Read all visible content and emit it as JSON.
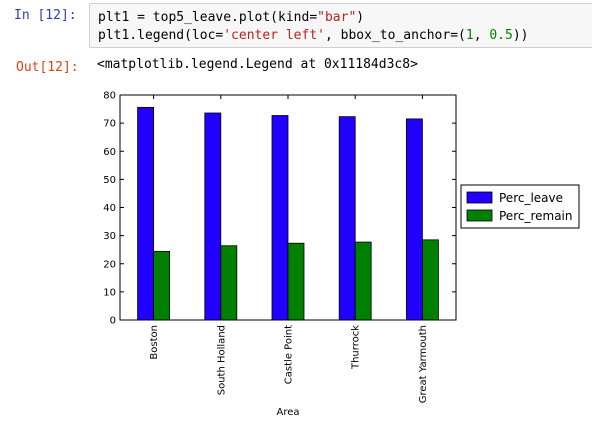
{
  "cells": {
    "in_prompt": "In [12]:",
    "code_lines": [
      {
        "pre": "plt1 = top5_leave.plot(kind=",
        "str": "\"bar\"",
        "post": ")"
      },
      {
        "pre": "plt1.legend(loc=",
        "str": "'center left'",
        "mid": ", bbox_to_anchor=(",
        "num1": "1",
        "sep": ", ",
        "num2": "0.5",
        "post": "))"
      }
    ],
    "out_prompt": "Out[12]:",
    "output_text": "<matplotlib.legend.Legend at 0x11184d3c8>"
  },
  "chart_data": {
    "type": "bar",
    "categories": [
      "Boston",
      "South Holland",
      "Castle Point",
      "Thurrock",
      "Great Yarmouth"
    ],
    "series": [
      {
        "name": "Perc_leave",
        "values": [
          75.6,
          73.6,
          72.7,
          72.3,
          71.5
        ],
        "color": "#2200ff"
      },
      {
        "name": "Perc_remain",
        "values": [
          24.4,
          26.4,
          27.3,
          27.7,
          28.5
        ],
        "color": "#008000"
      }
    ],
    "xlabel": "Area",
    "ylabel": "",
    "ylim": [
      0,
      80
    ],
    "yticks": [
      0,
      10,
      20,
      30,
      40,
      50,
      60,
      70,
      80
    ],
    "legend_position": "center right, outside axes",
    "grid": false
  }
}
